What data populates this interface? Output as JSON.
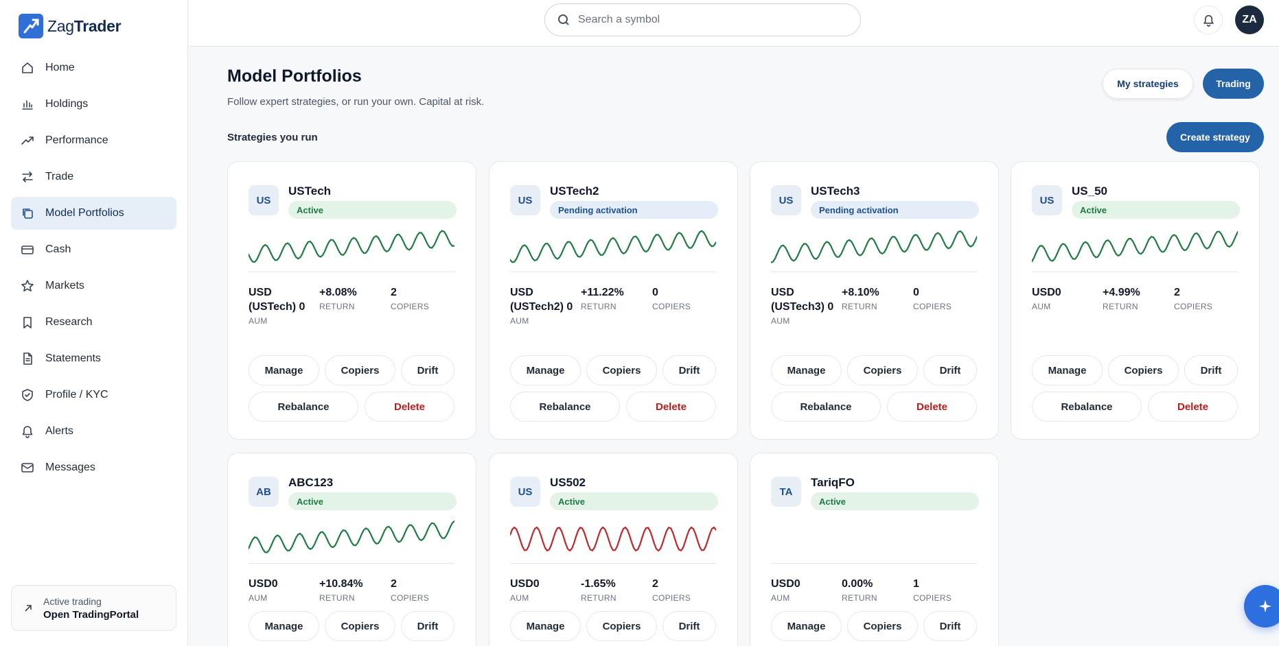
{
  "app": {
    "logo_part1": "Zag",
    "logo_part2": "Trader"
  },
  "sidebar": {
    "items": [
      {
        "label": "Home",
        "icon": "home-icon"
      },
      {
        "label": "Holdings",
        "icon": "bar-chart-icon"
      },
      {
        "label": "Performance",
        "icon": "trending-up-icon"
      },
      {
        "label": "Trade",
        "icon": "arrows-swap-icon"
      },
      {
        "label": "Model Portfolios",
        "icon": "copy-icon",
        "active": true
      },
      {
        "label": "Cash",
        "icon": "credit-card-icon"
      },
      {
        "label": "Markets",
        "icon": "star-icon"
      },
      {
        "label": "Research",
        "icon": "bookmark-icon"
      },
      {
        "label": "Statements",
        "icon": "document-icon"
      },
      {
        "label": "Profile / KYC",
        "icon": "shield-check-icon"
      },
      {
        "label": "Alerts",
        "icon": "bell-icon"
      },
      {
        "label": "Messages",
        "icon": "mail-icon"
      }
    ],
    "footer": {
      "line1": "Active trading",
      "line2": "Open TradingPortal"
    }
  },
  "header": {
    "search_placeholder": "Search a symbol",
    "avatar_initials": "ZA"
  },
  "page": {
    "title": "Model Portfolios",
    "subtitle": "Follow expert strategies, or run your own. Capital at risk.",
    "my_strategies_label": "My strategies",
    "trading_label": "Trading",
    "section_label": "Strategies you run",
    "create_label": "Create strategy"
  },
  "labels": {
    "aum": "AUM",
    "return": "RETURN",
    "copiers": "COPIERS",
    "manage": "Manage",
    "copiers_btn": "Copiers",
    "drift": "Drift",
    "rebalance": "Rebalance",
    "delete": "Delete"
  },
  "strategies": [
    {
      "tag": "US",
      "name": "USTech",
      "status": "Active",
      "status_type": "active",
      "aum": "USD (USTech) 0",
      "return": "+8.08%",
      "copiers": "2",
      "trend": "up",
      "color": "#1f7a43"
    },
    {
      "tag": "US",
      "name": "USTech2",
      "status": "Pending activation",
      "status_type": "pending",
      "aum": "USD (USTech2) 0",
      "return": "+11.22%",
      "copiers": "0",
      "trend": "up",
      "color": "#1f7a43"
    },
    {
      "tag": "US",
      "name": "USTech3",
      "status": "Pending activation",
      "status_type": "pending",
      "aum": "USD (USTech3) 0",
      "return": "+8.10%",
      "copiers": "0",
      "trend": "up",
      "color": "#1f7a43"
    },
    {
      "tag": "US",
      "name": "US_50",
      "status": "Active",
      "status_type": "active",
      "aum": "USD0",
      "return": "+4.99%",
      "copiers": "2",
      "trend": "up",
      "color": "#1f7a43"
    },
    {
      "tag": "AB",
      "name": "ABC123",
      "status": "Active",
      "status_type": "active",
      "aum": "USD0",
      "return": "+10.84%",
      "copiers": "2",
      "trend": "up",
      "color": "#1f7a43"
    },
    {
      "tag": "US",
      "name": "US502",
      "status": "Active",
      "status_type": "active",
      "aum": "USD0",
      "return": "-1.65%",
      "copiers": "2",
      "trend": "flat",
      "color": "#c0262d"
    },
    {
      "tag": "TA",
      "name": "TariqFO",
      "status": "Active",
      "status_type": "active",
      "aum": "USD0",
      "return": "0.00%",
      "copiers": "1",
      "trend": "none",
      "color": ""
    }
  ]
}
